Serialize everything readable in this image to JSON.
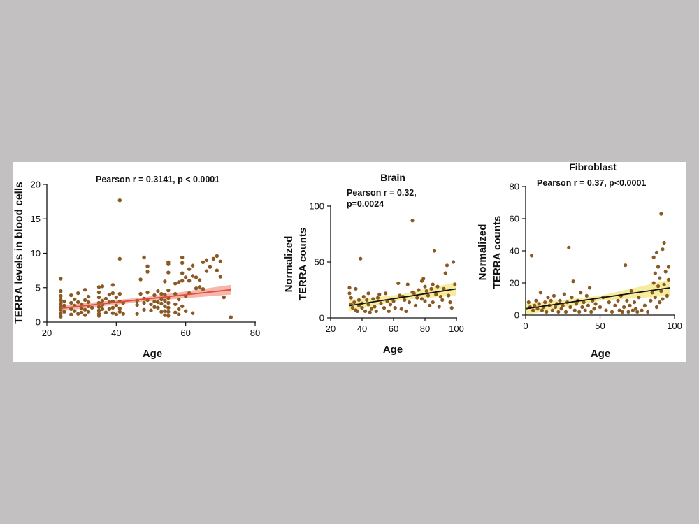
{
  "colors": {
    "background": "#c2c0c1",
    "panel": "#ffffff",
    "point": "#8a5a24",
    "blood_line": "#e0503a",
    "blood_band": "#f4a99c",
    "black_line": "#111111",
    "yellow_band": "#f3ea8c"
  },
  "chart_data": [
    {
      "type": "scatter",
      "title": "",
      "annotation": [
        "Pearson r = 0.3141, p < 0.0001"
      ],
      "xlabel": "Age",
      "ylabel": [
        "TERRA levels in blood cells"
      ],
      "xlim": [
        20,
        80
      ],
      "ylim": [
        0,
        20
      ],
      "xticks": [
        20,
        40,
        60,
        80
      ],
      "yticks": [
        0,
        5,
        10,
        15,
        20
      ],
      "x_tick_labels": [
        "20",
        "40",
        "60",
        "80"
      ],
      "y_tick_labels": [
        "0",
        "5",
        "10",
        "15",
        "20"
      ],
      "regression": {
        "x": [
          24,
          73
        ],
        "y": [
          2.0,
          4.7
        ],
        "band": [
          [
            24,
            1.6,
            2.4
          ],
          [
            48,
            3.0,
            3.6
          ],
          [
            73,
            4.0,
            5.4
          ]
        ]
      },
      "line_color_key": "blood_line",
      "band_color_key": "blood_band",
      "points": [
        [
          24,
          6.3
        ],
        [
          24,
          4.5
        ],
        [
          24,
          3.8
        ],
        [
          24,
          3.2
        ],
        [
          24,
          2.7
        ],
        [
          24,
          2.2
        ],
        [
          24,
          1.8
        ],
        [
          24,
          1.2
        ],
        [
          24,
          0.8
        ],
        [
          25,
          2.4
        ],
        [
          25,
          3.0
        ],
        [
          25,
          1.5
        ],
        [
          27,
          3.9
        ],
        [
          27,
          2.8
        ],
        [
          27,
          1.9
        ],
        [
          27,
          1.1
        ],
        [
          28,
          2.4
        ],
        [
          28,
          3.3
        ],
        [
          28,
          1.6
        ],
        [
          29,
          2.9
        ],
        [
          29,
          1.2
        ],
        [
          29,
          4.2
        ],
        [
          30,
          2.0
        ],
        [
          30,
          2.6
        ],
        [
          30,
          1.4
        ],
        [
          31,
          4.7
        ],
        [
          31,
          3.2
        ],
        [
          31,
          1.8
        ],
        [
          31,
          1.0
        ],
        [
          32,
          2.3
        ],
        [
          32,
          3.7
        ],
        [
          32,
          2.9
        ],
        [
          32,
          1.5
        ],
        [
          33,
          2.1
        ],
        [
          35,
          5.1
        ],
        [
          35,
          4.3
        ],
        [
          35,
          3.6
        ],
        [
          35,
          2.8
        ],
        [
          35,
          2.2
        ],
        [
          35,
          1.7
        ],
        [
          35,
          1.2
        ],
        [
          35,
          0.9
        ],
        [
          36,
          5.2
        ],
        [
          36,
          3.1
        ],
        [
          36,
          2.5
        ],
        [
          36,
          1.9
        ],
        [
          37,
          3.4
        ],
        [
          37,
          1.4
        ],
        [
          38,
          4.0
        ],
        [
          38,
          2.9
        ],
        [
          38,
          1.9
        ],
        [
          39,
          5.4
        ],
        [
          39,
          4.2
        ],
        [
          39,
          3.0
        ],
        [
          39,
          2.1
        ],
        [
          39,
          1.3
        ],
        [
          40,
          3.6
        ],
        [
          40,
          2.4
        ],
        [
          40,
          1.1
        ],
        [
          41,
          17.7
        ],
        [
          41,
          9.2
        ],
        [
          41,
          4.1
        ],
        [
          41,
          3.0
        ],
        [
          41,
          2.0
        ],
        [
          41,
          1.5
        ],
        [
          42,
          2.8
        ],
        [
          42,
          1.2
        ],
        [
          46,
          3.1
        ],
        [
          46,
          2.5
        ],
        [
          46,
          1.2
        ],
        [
          47,
          6.2
        ],
        [
          47,
          4.1
        ],
        [
          48,
          9.4
        ],
        [
          48,
          3.4
        ],
        [
          48,
          2.8
        ],
        [
          48,
          1.8
        ],
        [
          49,
          8.1
        ],
        [
          49,
          7.3
        ],
        [
          49,
          4.3
        ],
        [
          49,
          3.2
        ],
        [
          50,
          2.6
        ],
        [
          50,
          1.7
        ],
        [
          51,
          3.9
        ],
        [
          51,
          3.0
        ],
        [
          51,
          2.2
        ],
        [
          52,
          4.5
        ],
        [
          52,
          2.9
        ],
        [
          52,
          2.1
        ],
        [
          53,
          4.1
        ],
        [
          53,
          3.3
        ],
        [
          53,
          2.7
        ],
        [
          53,
          1.5
        ],
        [
          54,
          5.9
        ],
        [
          54,
          4.0
        ],
        [
          54,
          3.1
        ],
        [
          54,
          2.3
        ],
        [
          54,
          1.6
        ],
        [
          54,
          1.0
        ],
        [
          55,
          8.7
        ],
        [
          55,
          8.4
        ],
        [
          55,
          7.2
        ],
        [
          55,
          4.6
        ],
        [
          55,
          3.5
        ],
        [
          55,
          2.8
        ],
        [
          55,
          2.1
        ],
        [
          55,
          1.5
        ],
        [
          55,
          0.9
        ],
        [
          57,
          5.6
        ],
        [
          57,
          4.1
        ],
        [
          57,
          2.6
        ],
        [
          57,
          1.4
        ],
        [
          58,
          5.8
        ],
        [
          58,
          3.3
        ],
        [
          58,
          1.9
        ],
        [
          58,
          1.1
        ],
        [
          59,
          9.4
        ],
        [
          59,
          8.6
        ],
        [
          59,
          7.1
        ],
        [
          59,
          6.0
        ],
        [
          59,
          2.3
        ],
        [
          60,
          6.5
        ],
        [
          60,
          3.8
        ],
        [
          60,
          1.6
        ],
        [
          61,
          7.7
        ],
        [
          61,
          6.0
        ],
        [
          61,
          4.2
        ],
        [
          62,
          8.2
        ],
        [
          62,
          6.7
        ],
        [
          62,
          1.3
        ],
        [
          63,
          6.5
        ],
        [
          63,
          4.9
        ],
        [
          64,
          6.1
        ],
        [
          64,
          5.1
        ],
        [
          65,
          8.7
        ],
        [
          65,
          4.8
        ],
        [
          66,
          9.0
        ],
        [
          66,
          7.4
        ],
        [
          67,
          8.0
        ],
        [
          68,
          9.2
        ],
        [
          69,
          9.6
        ],
        [
          69,
          7.5
        ],
        [
          70,
          8.8
        ],
        [
          70,
          6.6
        ],
        [
          71,
          3.6
        ],
        [
          73,
          0.7
        ]
      ]
    },
    {
      "type": "scatter",
      "title": "Brain",
      "annotation": [
        "Pearson r = 0.32,",
        "p=0.0024"
      ],
      "xlabel": "Age",
      "ylabel": [
        "Normalized",
        "TERRA counts"
      ],
      "xlim": [
        20,
        100
      ],
      "ylim": [
        0,
        100
      ],
      "xticks": [
        20,
        40,
        60,
        80,
        100
      ],
      "yticks": [
        0,
        50,
        100
      ],
      "x_tick_labels": [
        "20",
        "40",
        "60",
        "80",
        "100"
      ],
      "y_tick_labels": [
        "0",
        "50",
        "100"
      ],
      "regression": {
        "x": [
          32,
          100
        ],
        "y": [
          11,
          26
        ],
        "band": [
          [
            32,
            6,
            16
          ],
          [
            65,
            16,
            21
          ],
          [
            100,
            20,
            32
          ]
        ]
      },
      "line_color_key": "black_line",
      "band_color_key": "yellow_band",
      "points": [
        [
          32,
          27
        ],
        [
          32,
          22
        ],
        [
          33,
          18
        ],
        [
          33,
          12
        ],
        [
          34,
          9
        ],
        [
          35,
          14
        ],
        [
          36,
          7
        ],
        [
          36,
          26
        ],
        [
          37,
          6
        ],
        [
          38,
          16
        ],
        [
          38,
          11
        ],
        [
          39,
          53
        ],
        [
          40,
          9
        ],
        [
          40,
          13
        ],
        [
          41,
          19
        ],
        [
          42,
          6
        ],
        [
          43,
          16
        ],
        [
          44,
          22
        ],
        [
          44,
          12
        ],
        [
          45,
          5
        ],
        [
          46,
          8
        ],
        [
          47,
          17
        ],
        [
          48,
          10
        ],
        [
          49,
          6
        ],
        [
          50,
          18
        ],
        [
          51,
          21
        ],
        [
          52,
          13
        ],
        [
          54,
          9
        ],
        [
          55,
          22
        ],
        [
          56,
          15
        ],
        [
          57,
          6
        ],
        [
          58,
          12
        ],
        [
          60,
          15
        ],
        [
          61,
          9
        ],
        [
          63,
          31
        ],
        [
          64,
          20
        ],
        [
          65,
          8
        ],
        [
          66,
          19
        ],
        [
          67,
          16
        ],
        [
          68,
          6
        ],
        [
          69,
          30
        ],
        [
          70,
          14
        ],
        [
          72,
          87
        ],
        [
          72,
          23
        ],
        [
          73,
          22
        ],
        [
          74,
          11
        ],
        [
          75,
          18
        ],
        [
          76,
          25
        ],
        [
          78,
          33
        ],
        [
          78,
          17
        ],
        [
          79,
          35
        ],
        [
          80,
          28
        ],
        [
          80,
          15
        ],
        [
          81,
          24
        ],
        [
          82,
          20
        ],
        [
          83,
          11
        ],
        [
          84,
          26
        ],
        [
          85,
          30
        ],
        [
          85,
          14
        ],
        [
          86,
          60
        ],
        [
          87,
          21
        ],
        [
          88,
          28
        ],
        [
          89,
          10
        ],
        [
          90,
          19
        ],
        [
          91,
          16
        ],
        [
          92,
          26
        ],
        [
          93,
          40
        ],
        [
          94,
          47
        ],
        [
          95,
          20
        ],
        [
          96,
          14
        ],
        [
          97,
          9
        ],
        [
          98,
          50
        ],
        [
          99,
          30
        ]
      ]
    },
    {
      "type": "scatter",
      "title": "Fibroblast",
      "annotation": [
        "Pearson r = 0.37, p<0.0001"
      ],
      "xlabel": "Age",
      "ylabel": [
        "Normalized",
        "TERRA counts"
      ],
      "xlim": [
        0,
        100
      ],
      "ylim": [
        0,
        80
      ],
      "xticks": [
        0,
        50,
        100
      ],
      "yticks": [
        0,
        20,
        40,
        60,
        80
      ],
      "x_tick_labels": [
        "0",
        "50",
        "100"
      ],
      "y_tick_labels": [
        "0",
        "20",
        "40",
        "60",
        "80"
      ],
      "regression": {
        "x": [
          0,
          97
        ],
        "y": [
          4,
          17
        ],
        "band": [
          [
            0,
            0,
            7
          ],
          [
            50,
            9,
            12
          ],
          [
            97,
            12,
            22
          ]
        ]
      },
      "line_color_key": "black_line",
      "band_color_key": "yellow_band",
      "points": [
        [
          2,
          8
        ],
        [
          3,
          5
        ],
        [
          4,
          37
        ],
        [
          5,
          3
        ],
        [
          6,
          6
        ],
        [
          7,
          9
        ],
        [
          8,
          4
        ],
        [
          9,
          7
        ],
        [
          10,
          14
        ],
        [
          11,
          3
        ],
        [
          12,
          5
        ],
        [
          13,
          8
        ],
        [
          14,
          2
        ],
        [
          15,
          11
        ],
        [
          16,
          6
        ],
        [
          17,
          9
        ],
        [
          18,
          3
        ],
        [
          19,
          12
        ],
        [
          20,
          5
        ],
        [
          21,
          7
        ],
        [
          22,
          2
        ],
        [
          23,
          9
        ],
        [
          24,
          4
        ],
        [
          25,
          6
        ],
        [
          26,
          13
        ],
        [
          27,
          2
        ],
        [
          28,
          8
        ],
        [
          29,
          42
        ],
        [
          30,
          5
        ],
        [
          31,
          11
        ],
        [
          32,
          21
        ],
        [
          33,
          3
        ],
        [
          34,
          7
        ],
        [
          35,
          9
        ],
        [
          36,
          2
        ],
        [
          37,
          14
        ],
        [
          38,
          5
        ],
        [
          39,
          8
        ],
        [
          40,
          3
        ],
        [
          41,
          12
        ],
        [
          42,
          6
        ],
        [
          43,
          17
        ],
        [
          44,
          2
        ],
        [
          45,
          9
        ],
        [
          46,
          4
        ],
        [
          47,
          7
        ],
        [
          50,
          5
        ],
        [
          52,
          11
        ],
        [
          54,
          3
        ],
        [
          56,
          8
        ],
        [
          58,
          2
        ],
        [
          60,
          6
        ],
        [
          62,
          9
        ],
        [
          63,
          3
        ],
        [
          64,
          12
        ],
        [
          65,
          2
        ],
        [
          66,
          5
        ],
        [
          67,
          31
        ],
        [
          68,
          9
        ],
        [
          69,
          2
        ],
        [
          70,
          6
        ],
        [
          71,
          15
        ],
        [
          72,
          3
        ],
        [
          73,
          8
        ],
        [
          74,
          4
        ],
        [
          75,
          2
        ],
        [
          76,
          11
        ],
        [
          78,
          3
        ],
        [
          80,
          6
        ],
        [
          82,
          2
        ],
        [
          84,
          9
        ],
        [
          85,
          14
        ],
        [
          86,
          20
        ],
        [
          86,
          36
        ],
        [
          87,
          26
        ],
        [
          87,
          11
        ],
        [
          88,
          39
        ],
        [
          88,
          5
        ],
        [
          89,
          18
        ],
        [
          89,
          30
        ],
        [
          90,
          8
        ],
        [
          90,
          23
        ],
        [
          91,
          63
        ],
        [
          91,
          15
        ],
        [
          92,
          41
        ],
        [
          92,
          10
        ],
        [
          93,
          45
        ],
        [
          93,
          19
        ],
        [
          94,
          27
        ],
        [
          95,
          12
        ],
        [
          96,
          30
        ],
        [
          96,
          22
        ]
      ]
    }
  ]
}
